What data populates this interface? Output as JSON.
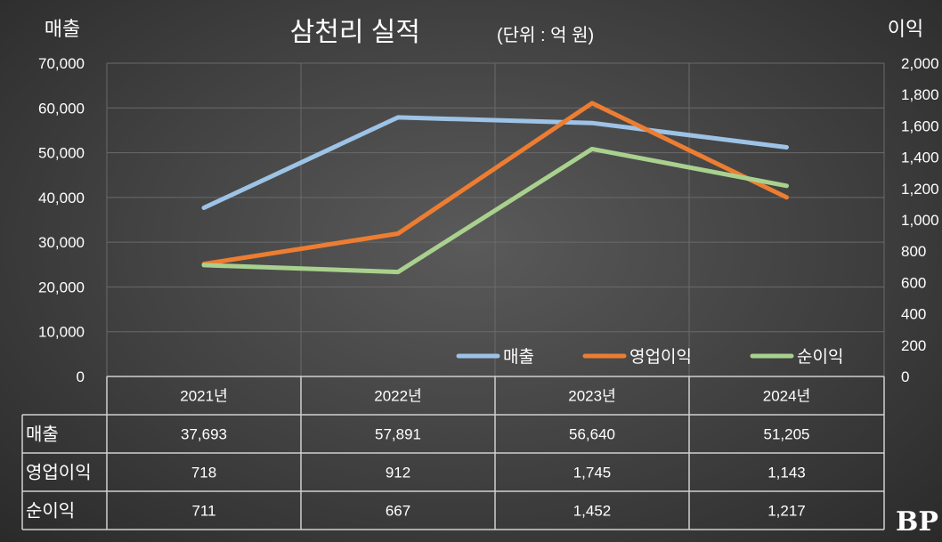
{
  "chart_data": {
    "type": "line",
    "title": "삼천리 실적",
    "subtitle": "(단위 : 억 원)",
    "left_axis_label": "매출",
    "right_axis_label": "이익",
    "categories": [
      "2021년",
      "2022년",
      "2023년",
      "2024년"
    ],
    "left_ylim": [
      0,
      70000
    ],
    "left_ticks": [
      "0",
      "10,000",
      "20,000",
      "30,000",
      "40,000",
      "50,000",
      "60,000",
      "70,000"
    ],
    "right_ylim": [
      0,
      2000
    ],
    "right_ticks": [
      "0",
      "200",
      "400",
      "600",
      "800",
      "1,000",
      "1,200",
      "1,400",
      "1,600",
      "1,800",
      "2,000"
    ],
    "series": [
      {
        "name": "매출",
        "axis": "left",
        "color": "#9dc3e6",
        "values": [
          37693,
          57891,
          56640,
          51205
        ],
        "labels": [
          "37,693",
          "57,891",
          "56,640",
          "51,205"
        ]
      },
      {
        "name": "영업이익",
        "axis": "right",
        "color": "#ed7d31",
        "values": [
          718,
          912,
          1745,
          1143
        ],
        "labels": [
          "718",
          "912",
          "1,745",
          "1,143"
        ]
      },
      {
        "name": "순이익",
        "axis": "right",
        "color": "#a9d18e",
        "values": [
          711,
          667,
          1452,
          1217
        ],
        "labels": [
          "711",
          "667",
          "1,452",
          "1,217"
        ]
      }
    ],
    "grid": true,
    "legend": "bottom-right"
  },
  "watermark": "BP"
}
